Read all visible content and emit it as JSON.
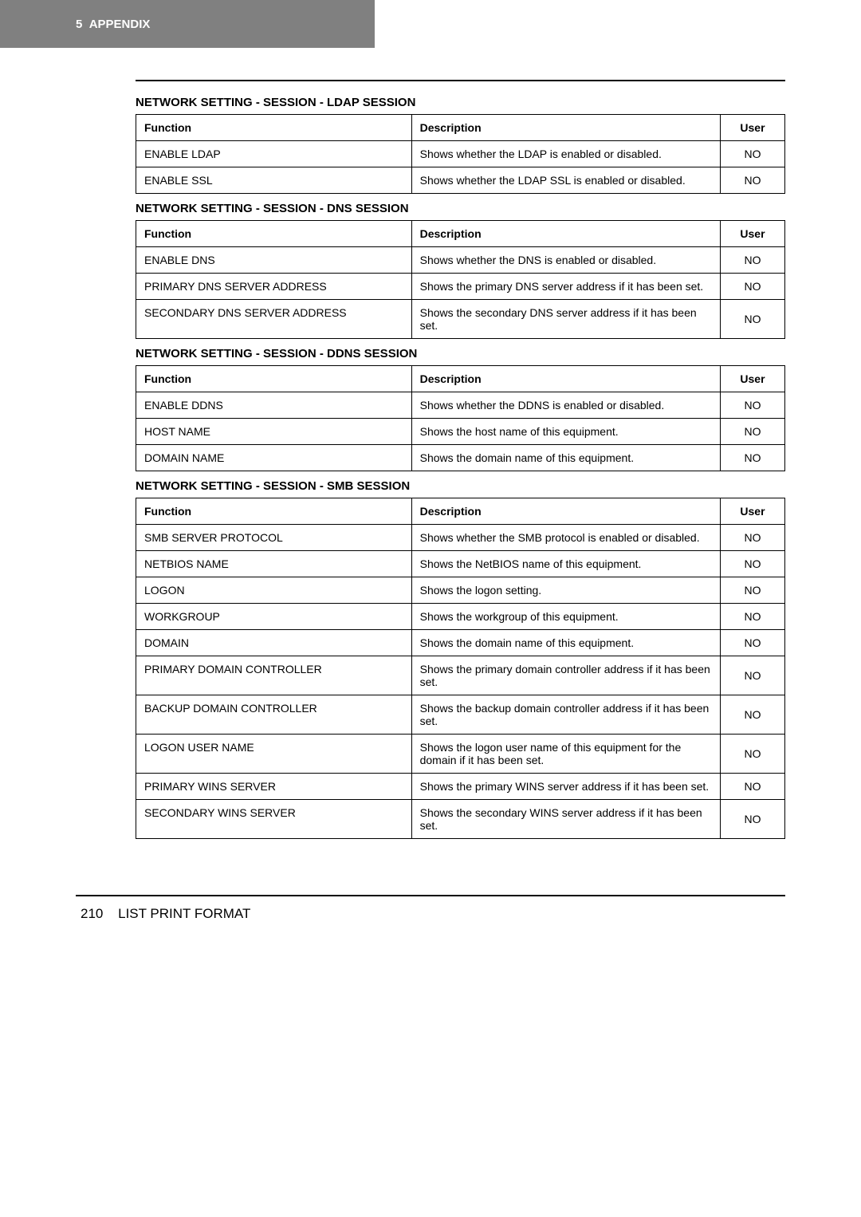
{
  "header": {
    "chapter_number": "5",
    "chapter_title": "APPENDIX"
  },
  "sections": [
    {
      "title": "NETWORK SETTING - SESSION - LDAP SESSION",
      "columns": {
        "function": "Function",
        "description": "Description",
        "user": "User"
      },
      "rows": [
        {
          "function": "ENABLE LDAP",
          "description": "Shows whether the LDAP is enabled or disabled.",
          "user": "NO"
        },
        {
          "function": "ENABLE SSL",
          "description": "Shows whether the LDAP SSL is enabled or disabled.",
          "user": "NO"
        }
      ]
    },
    {
      "title": "NETWORK SETTING - SESSION - DNS SESSION",
      "columns": {
        "function": "Function",
        "description": "Description",
        "user": "User"
      },
      "rows": [
        {
          "function": "ENABLE DNS",
          "description": "Shows whether the DNS is enabled or disabled.",
          "user": "NO"
        },
        {
          "function": "PRIMARY DNS SERVER ADDRESS",
          "description": "Shows the primary DNS server address if it has been set.",
          "user": "NO"
        },
        {
          "function": "SECONDARY DNS SERVER ADDRESS",
          "description": "Shows the secondary DNS server address if it has been set.",
          "user": "NO"
        }
      ]
    },
    {
      "title": "NETWORK SETTING - SESSION - DDNS SESSION",
      "columns": {
        "function": "Function",
        "description": "Description",
        "user": "User"
      },
      "rows": [
        {
          "function": "ENABLE DDNS",
          "description": "Shows whether the DDNS is enabled or disabled.",
          "user": "NO"
        },
        {
          "function": "HOST NAME",
          "description": "Shows the host name of this equipment.",
          "user": "NO"
        },
        {
          "function": "DOMAIN NAME",
          "description": "Shows the domain name of this equipment.",
          "user": "NO"
        }
      ]
    },
    {
      "title": "NETWORK SETTING - SESSION - SMB SESSION",
      "columns": {
        "function": "Function",
        "description": "Description",
        "user": "User"
      },
      "rows": [
        {
          "function": "SMB SERVER PROTOCOL",
          "description": "Shows whether the SMB protocol is enabled or disabled.",
          "user": "NO"
        },
        {
          "function": "NETBIOS NAME",
          "description": "Shows the NetBIOS name of this equipment.",
          "user": "NO"
        },
        {
          "function": "LOGON",
          "description": "Shows the logon setting.",
          "user": "NO"
        },
        {
          "function": "WORKGROUP",
          "description": "Shows the workgroup of this equipment.",
          "user": "NO"
        },
        {
          "function": "DOMAIN",
          "description": "Shows the domain name of this equipment.",
          "user": "NO"
        },
        {
          "function": "PRIMARY DOMAIN CONTROLLER",
          "description": "Shows the primary domain controller address if it has been set.",
          "user": "NO"
        },
        {
          "function": "BACKUP DOMAIN CONTROLLER",
          "description": "Shows the backup domain controller address if it has been set.",
          "user": "NO"
        },
        {
          "function": "LOGON USER NAME",
          "description": "Shows the logon user name of this equipment for the domain if it has been set.",
          "user": "NO"
        },
        {
          "function": "PRIMARY WINS SERVER",
          "description": "Shows the primary WINS server address if it has been set.",
          "user": "NO"
        },
        {
          "function": "SECONDARY WINS SERVER",
          "description": "Shows the secondary WINS server address if it has been set.",
          "user": "NO"
        }
      ]
    }
  ],
  "footer": {
    "page_number": "210",
    "page_title": "LIST PRINT FORMAT"
  },
  "styles": {
    "header_bg": "#808080",
    "header_text_color": "#ffffff",
    "body_bg": "#ffffff",
    "text_color": "#000000",
    "rule_color": "#000000",
    "border_color": "#000000",
    "font_family": "Arial, Helvetica, sans-serif",
    "header_fontsize": 15,
    "section_title_fontsize": 15,
    "cell_fontsize": 14,
    "footer_fontsize": 17,
    "col_widths": {
      "function": 290,
      "description": 325,
      "user": 68
    }
  }
}
